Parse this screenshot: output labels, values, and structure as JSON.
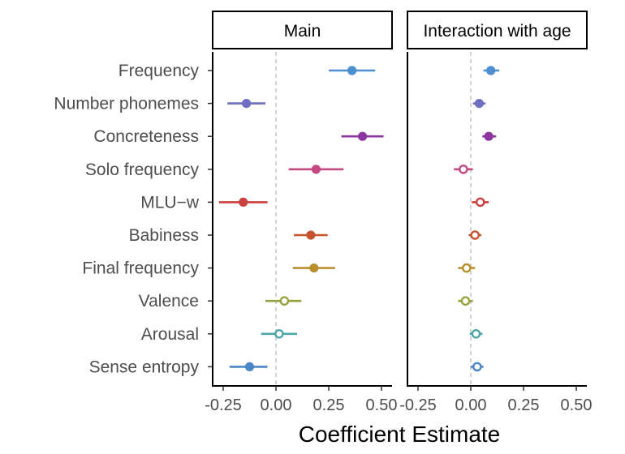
{
  "chart_data": {
    "type": "scatter",
    "subtype": "coefficient-forest-plot",
    "xlabel": "Coefficient Estimate",
    "xlim": [
      -0.3,
      0.55
    ],
    "x_ticks": [
      -0.25,
      0.0,
      0.25,
      0.5
    ],
    "x_tick_labels": [
      "-0.25",
      "0.00",
      "0.25",
      "0.50"
    ],
    "reference_line": 0,
    "grid": false,
    "legend": "none",
    "categories": [
      "Frequency",
      "Number phonemes",
      "Concreteness",
      "Solo frequency",
      "MLU−w",
      "Babiness",
      "Final frequency",
      "Valence",
      "Arousal",
      "Sense entropy"
    ],
    "colors": [
      "#4b8fd0",
      "#6f6fc2",
      "#8b35a0",
      "#c44882",
      "#cc4040",
      "#c4552e",
      "#b8902e",
      "#95a13a",
      "#4da6a6",
      "#4a86c8"
    ],
    "panels": [
      {
        "name": "Main",
        "estimates": [
          0.36,
          -0.14,
          0.41,
          0.19,
          -0.155,
          0.165,
          0.18,
          0.04,
          0.015,
          -0.125
        ],
        "ci_low": [
          0.25,
          -0.23,
          0.31,
          0.06,
          -0.27,
          0.085,
          0.08,
          -0.05,
          -0.07,
          -0.22
        ],
        "ci_high": [
          0.47,
          -0.05,
          0.51,
          0.32,
          -0.04,
          0.245,
          0.28,
          0.12,
          0.1,
          -0.04
        ],
        "significant": [
          true,
          true,
          true,
          true,
          true,
          true,
          true,
          false,
          false,
          true
        ]
      },
      {
        "name": "Interaction with age",
        "estimates": [
          0.095,
          0.04,
          0.085,
          -0.035,
          0.045,
          0.02,
          -0.02,
          -0.025,
          0.025,
          0.03
        ],
        "ci_low": [
          0.06,
          0.01,
          0.055,
          -0.08,
          0.005,
          -0.01,
          -0.06,
          -0.06,
          -0.005,
          0.0
        ],
        "ci_high": [
          0.135,
          0.07,
          0.12,
          0.01,
          0.085,
          0.05,
          0.02,
          0.01,
          0.055,
          0.06
        ],
        "significant": [
          true,
          true,
          true,
          false,
          false,
          false,
          false,
          false,
          false,
          false
        ]
      }
    ]
  }
}
